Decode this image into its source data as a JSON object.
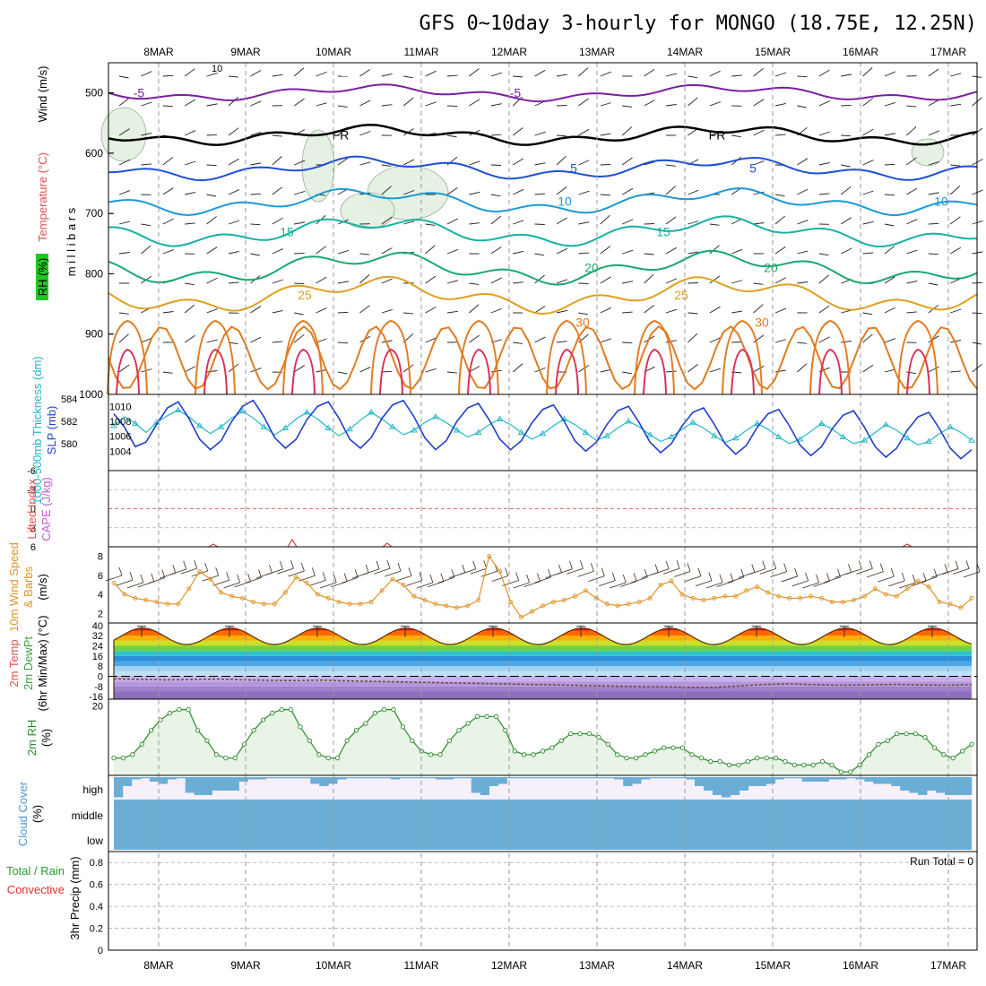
{
  "chart_data": {
    "type": "line",
    "title": "GFS 0~10day 3-hourly for MONGO (18.75E, 12.25N)",
    "dates": [
      "8MAR",
      "9MAR",
      "10MAR",
      "11MAR",
      "12MAR",
      "13MAR",
      "14MAR",
      "15MAR",
      "16MAR",
      "17MAR"
    ],
    "panels": {
      "upper_air": {
        "ylabels": [
          "Wind (m/s)",
          "Temperature (°C)",
          "RH (%)",
          "m i l l i b a r s"
        ],
        "yticks": [
          "500",
          "600",
          "700",
          "800",
          "900",
          "1000"
        ],
        "ylim": [
          450,
          1000
        ],
        "contours": [
          {
            "label": "-5",
            "p": 500,
            "color": "#7b1fa2"
          },
          {
            "label": "FR",
            "p": 570,
            "color": "#000000"
          },
          {
            "label": "5",
            "p": 625,
            "color": "#1e4fd8"
          },
          {
            "label": "10",
            "p": 680,
            "color": "#1a9ad6"
          },
          {
            "label": "15",
            "p": 730,
            "color": "#14b3a0"
          },
          {
            "label": "20",
            "p": 790,
            "color": "#19a870"
          },
          {
            "label": "25",
            "p": 835,
            "color": "#e0a020"
          },
          {
            "label": "30",
            "p": 880,
            "color": "#e07b20"
          }
        ],
        "rh_label": "10"
      },
      "slp": {
        "ylabels": [
          "1000-500mb Thickness (dm)",
          "SLP (mb)"
        ],
        "left_ticks": [
          "584",
          "582",
          "580"
        ],
        "left_ylim": [
          578,
          584
        ],
        "right_ticks": [
          "1010",
          "1008",
          "1006",
          "1004"
        ],
        "right_ylim": [
          1002,
          1011
        ],
        "thickness": [
          581.6,
          582.4,
          581.8,
          581.0,
          581.9,
          582.5,
          583.0,
          582.4,
          581.6,
          580.9,
          581.5,
          582.3,
          582.9,
          582.3,
          581.5,
          580.8,
          581.4,
          582.2,
          582.8,
          582.2,
          581.4,
          580.7,
          581.3,
          582.1,
          582.8,
          582.2,
          581.5,
          580.8,
          581.2,
          581.9,
          582.4,
          581.9,
          581.2,
          580.6,
          581.0,
          581.7,
          582.2,
          581.7,
          581.0,
          580.4,
          580.9,
          581.6,
          582.2,
          581.7,
          581.0,
          580.3,
          580.7,
          581.4,
          582.0,
          581.5,
          580.8,
          580.2,
          580.6,
          581.3,
          581.9,
          581.4,
          580.7,
          580.1,
          580.5,
          581.2,
          581.8,
          581.3,
          580.6,
          580.0,
          580.4,
          581.1,
          581.8,
          581.3,
          580.6,
          580.0,
          580.3,
          581.0,
          581.7,
          581.2,
          580.5,
          579.9,
          580.2,
          580.9,
          581.5,
          581.0,
          580.3
        ],
        "slp": [
          1009.0,
          1007.2,
          1004.6,
          1005.2,
          1007.6,
          1009.8,
          1010.6,
          1008.4,
          1005.6,
          1004.2,
          1005.4,
          1008.0,
          1010.0,
          1010.8,
          1008.6,
          1005.8,
          1004.4,
          1005.6,
          1008.2,
          1010.0,
          1010.6,
          1008.4,
          1005.6,
          1004.4,
          1005.8,
          1008.4,
          1010.2,
          1010.8,
          1008.6,
          1005.8,
          1004.2,
          1005.4,
          1008.0,
          1009.8,
          1010.4,
          1008.2,
          1005.6,
          1004.2,
          1005.4,
          1007.8,
          1009.6,
          1010.2,
          1008.0,
          1005.4,
          1004.0,
          1005.2,
          1007.6,
          1009.4,
          1010.0,
          1007.8,
          1005.2,
          1003.8,
          1005.0,
          1007.4,
          1009.2,
          1009.8,
          1007.6,
          1005.0,
          1003.6,
          1004.8,
          1007.2,
          1009.0,
          1009.6,
          1007.4,
          1004.8,
          1003.4,
          1004.6,
          1007.0,
          1008.8,
          1009.4,
          1007.2,
          1004.6,
          1003.2,
          1004.4,
          1006.8,
          1008.6,
          1009.2,
          1007.0,
          1004.4,
          1003.0,
          1004.2
        ]
      },
      "stability": {
        "ylabels": [
          "Lifted Index",
          "CAPE (J/kg)"
        ],
        "yticks": [
          "-6",
          "-3",
          "0",
          "3",
          "6"
        ],
        "ylim": [
          -6,
          6
        ]
      },
      "wind10m": {
        "ylabels": [
          "10m Wind Speed",
          "& Barbs",
          "(m/s)"
        ],
        "yticks": [
          "8",
          "6",
          "4",
          "2"
        ],
        "ylim": [
          1,
          9
        ],
        "speed": [
          5.2,
          4.0,
          3.6,
          3.4,
          3.2,
          3.0,
          3.0,
          4.6,
          6.4,
          5.6,
          4.2,
          3.8,
          3.6,
          3.2,
          3.0,
          3.0,
          4.2,
          5.8,
          5.2,
          4.0,
          3.6,
          3.2,
          3.0,
          3.0,
          3.2,
          4.4,
          5.6,
          5.0,
          3.8,
          3.4,
          3.0,
          2.8,
          2.6,
          2.8,
          3.4,
          8.0,
          6.4,
          3.2,
          1.6,
          2.2,
          2.8,
          3.2,
          3.4,
          3.8,
          4.4,
          3.6,
          3.0,
          2.8,
          3.0,
          3.2,
          3.6,
          5.0,
          5.4,
          4.0,
          3.6,
          3.4,
          3.6,
          3.8,
          3.8,
          4.4,
          4.8,
          4.2,
          3.8,
          3.6,
          3.6,
          3.8,
          3.6,
          3.2,
          3.2,
          3.4,
          3.8,
          4.6,
          4.0,
          3.8,
          4.6,
          5.4,
          4.8,
          3.2,
          3.0,
          2.6,
          3.6
        ]
      },
      "temp2m": {
        "ylabels": [
          "2m Temp",
          "2m DewPt",
          "(6hr Min/Max) (°C)"
        ],
        "yticks": [
          "40",
          "32",
          "24",
          "16",
          "8",
          "0",
          "-8",
          "-16"
        ],
        "ylim": [
          -18,
          42
        ],
        "temp_min": 25,
        "temp_max": 38,
        "dewpoint": [
          -2.0,
          -2.4,
          -2.8,
          -2.6,
          -2.2,
          -2.8,
          -3.2,
          -3.4,
          -3.0,
          -3.6,
          -4.0,
          -4.4,
          -4.8,
          -5.2,
          -5.6,
          -6.0,
          -6.4,
          -6.8,
          -7.2,
          -7.6,
          -8.0,
          -8.2,
          -8.6,
          -8.8,
          -7.6,
          -6.4,
          -6.0,
          -6.6,
          -7.0,
          -6.8,
          -6.4,
          -6.8,
          -7.0,
          -6.6
        ]
      },
      "rh2m": {
        "ylabels": [
          "2m RH",
          "(%)"
        ],
        "yticks": [
          "20"
        ],
        "ylim": [
          0,
          22
        ],
        "values": [
          5,
          5,
          6,
          9,
          13,
          16,
          18,
          19,
          19,
          13,
          10,
          6,
          5,
          5,
          9,
          13,
          16,
          18,
          19,
          19,
          14,
          10,
          6,
          5,
          5,
          10,
          13,
          15,
          18,
          19,
          19,
          14,
          10,
          7,
          6,
          6,
          10,
          13,
          15,
          17,
          17,
          17,
          13,
          7,
          6,
          6,
          7,
          8,
          10,
          12,
          12,
          12,
          11,
          9,
          6,
          5,
          5,
          6,
          7,
          8,
          8,
          8,
          6,
          5,
          4,
          4,
          3,
          3,
          4,
          5,
          5,
          5,
          4,
          3,
          3,
          3,
          4,
          3,
          1,
          1,
          3,
          6,
          9,
          10,
          12,
          12,
          12,
          11,
          8,
          6,
          5,
          7,
          9
        ]
      },
      "cloud": {
        "ylabels": [
          "Cloud Cover",
          "(%)"
        ],
        "yticks": [
          "high",
          "middle",
          "low"
        ],
        "high": [
          90,
          40,
          10,
          5,
          20,
          30,
          10,
          5,
          70,
          80,
          80,
          60,
          60,
          60,
          20,
          10,
          10,
          5,
          5,
          5,
          5,
          5,
          30,
          40,
          30,
          10,
          5,
          5,
          5,
          5,
          5,
          10,
          5,
          5,
          5,
          5,
          10,
          10,
          5,
          5,
          70,
          80,
          40,
          30,
          5,
          5,
          5,
          5,
          5,
          5,
          5,
          5,
          5,
          5,
          5,
          5,
          10,
          40,
          30,
          10,
          5,
          5,
          5,
          5,
          10,
          40,
          60,
          80,
          90,
          80,
          60,
          40,
          40,
          30,
          10,
          5,
          5,
          20,
          20,
          20,
          10,
          10,
          5,
          10,
          20,
          30,
          30,
          40,
          60,
          70,
          80,
          60,
          70,
          80,
          80,
          80
        ]
      },
      "precip": {
        "ylabels": [
          "3hr Precip (mm)",
          "Total / Rain",
          "Convective"
        ],
        "yticks": [
          "0.8",
          "0.6",
          "0.4",
          "0.2",
          "0"
        ],
        "ylim": [
          0,
          0.9
        ],
        "run_total": "Run Total = 0"
      }
    }
  },
  "colors": {
    "temp_fill_top": "#d40000",
    "cloud": "#6aaed6",
    "rh_fill": "#e8f4e6",
    "rh_line": "#2d8a2d",
    "wind_speed": "#e0942a",
    "slp": "#1f3fcc",
    "thickness": "#20b8c8"
  }
}
